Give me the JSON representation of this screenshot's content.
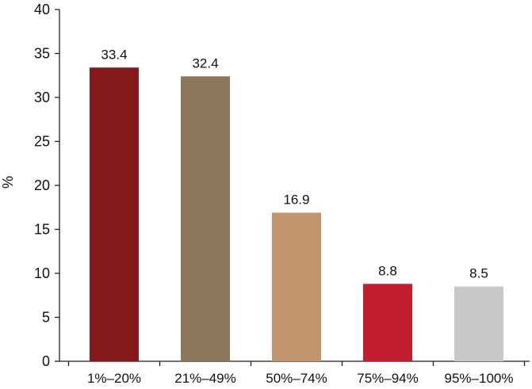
{
  "chart_data": {
    "type": "bar",
    "title": "",
    "xlabel": "",
    "ylabel": "%",
    "categories": [
      "1%–20%",
      "21%–49%",
      "50%–74%",
      "75%–94%",
      "95%–100%"
    ],
    "values": [
      33.4,
      32.4,
      16.9,
      8.8,
      8.5
    ],
    "value_labels": [
      "33.4",
      "32.4",
      "16.9",
      "8.8",
      "8.5"
    ],
    "colors": [
      "#861a1a",
      "#8d775b",
      "#c3956f",
      "#c11e2f",
      "#c8c8c8"
    ],
    "ylim": [
      0,
      40
    ],
    "yticks": [
      0,
      5,
      10,
      15,
      20,
      25,
      30,
      35,
      40
    ],
    "grid": false,
    "legend": "none"
  }
}
